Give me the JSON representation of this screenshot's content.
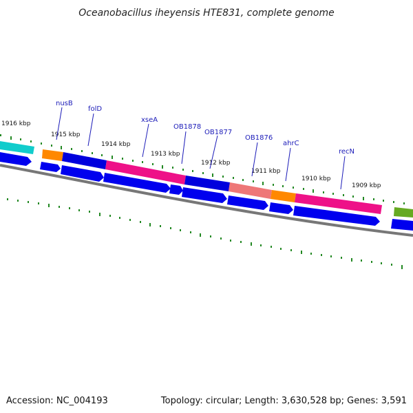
{
  "title": "Oceanobacillus iheyensis HTE831, complete genome",
  "footer": {
    "accession": "Accession: NC_004193",
    "summary": "Topology: circular; Length: 3,630,528 bp; Genes: 3,591"
  },
  "colors": {
    "cds_arrow": "#0000ee",
    "gene_bar_blue": "#0000dd",
    "gene_bar_orange": "#ff8800",
    "gene_bar_magenta": "#ee1188",
    "gene_bar_salmon": "#ee7777",
    "gene_bar_cyan": "#11cccc",
    "gene_bar_olive": "#66aa22",
    "backbone": "#777777",
    "ticks": "#228822",
    "label": "#1a1ab8"
  },
  "kbp_labels": [
    "1916 kbp",
    "1915 kbp",
    "1914 kbp",
    "1913 kbp",
    "1912 kbp",
    "1911 kbp",
    "1910 kbp",
    "1909 kbp"
  ],
  "gene_labels": [
    "nusB",
    "folD",
    "xseA",
    "OB1878",
    "OB1877",
    "OB1876",
    "ahrC",
    "recN"
  ]
}
